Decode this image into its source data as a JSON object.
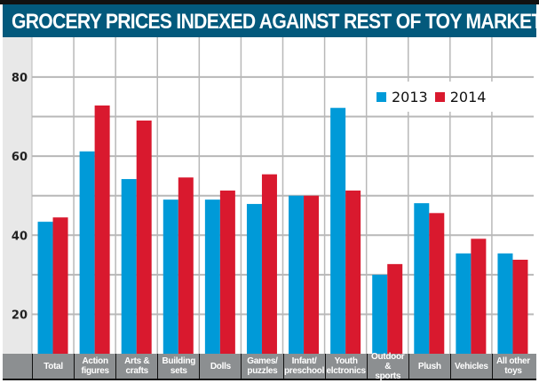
{
  "chart_data": {
    "type": "bar",
    "title": "GROCERY PRICES INDEXED AGAINST  REST OF TOY MARKET",
    "xlabel": "",
    "ylabel": "",
    "ylim": [
      10,
      90
    ],
    "yticks": [
      20,
      40,
      60,
      80
    ],
    "minor_gridlines": [
      30,
      50,
      70
    ],
    "grid": true,
    "legend_position": "top-right",
    "categories": [
      "Total",
      "Action figures",
      "Arts & crafts",
      "Building sets",
      "Dolls",
      "Games/ puzzles",
      "Infant/ preschool",
      "Youth elctronics",
      "Outdoor & sports",
      "Plush",
      "Vehicles",
      "All other toys"
    ],
    "category_lines": [
      [
        "Total"
      ],
      [
        "Action",
        "figures"
      ],
      [
        "Arts &",
        "crafts"
      ],
      [
        "Building",
        "sets"
      ],
      [
        "Dolls"
      ],
      [
        "Games/",
        "puzzles"
      ],
      [
        "Infant/",
        "preschool"
      ],
      [
        "Youth",
        "elctronics"
      ],
      [
        "Outdoor &",
        "sports"
      ],
      [
        "Plush"
      ],
      [
        "Vehicles"
      ],
      [
        "All other",
        "toys"
      ]
    ],
    "series": [
      {
        "name": "2013",
        "color": "#009ad8",
        "values": [
          43.4,
          61.2,
          54.2,
          49.0,
          49.0,
          47.9,
          50.0,
          72.2,
          30.0,
          48.1,
          35.4,
          35.4
        ]
      },
      {
        "name": "2014",
        "color": "#d9192e",
        "values": [
          44.5,
          72.8,
          69.0,
          54.6,
          51.3,
          55.4,
          50.0,
          51.3,
          32.7,
          45.6,
          39.1,
          33.8
        ]
      }
    ]
  }
}
